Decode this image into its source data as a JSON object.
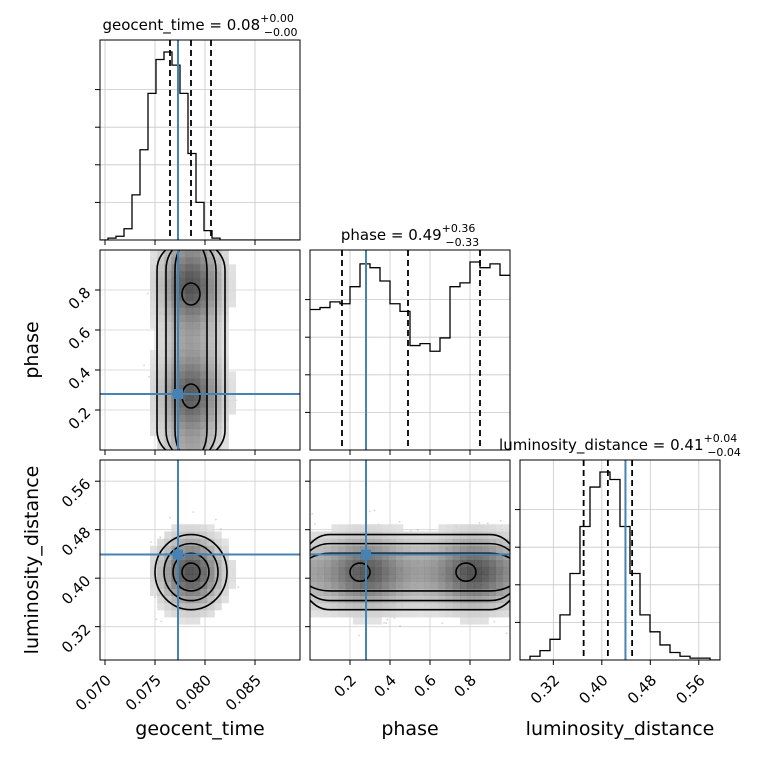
{
  "chart_data": {
    "type": "corner",
    "parameters": [
      {
        "name": "geocent_time",
        "label": "geocent_time",
        "range": [
          0.0695,
          0.0895
        ],
        "ticks": [
          0.07,
          0.075,
          0.08,
          0.085
        ],
        "tick_labels": [
          "0.070",
          "0.075",
          "0.080",
          "0.085"
        ],
        "median": 0.0786,
        "q_low": 0.0765,
        "q_high": 0.0806,
        "truth": 0.0773,
        "title_main": "geocent_time = 0.08",
        "title_plus": "+0.00",
        "title_minus": "−0.00",
        "hist": {
          "x_start": 0.0695,
          "bin_width": 0.0008,
          "counts": [
            0.0,
            0.01,
            0.02,
            0.06,
            0.24,
            0.48,
            0.78,
            0.96,
            1.0,
            0.93,
            0.78,
            0.46,
            0.2,
            0.05,
            0.01,
            0.0,
            0.0,
            0.0,
            0.0,
            0.0,
            0.0,
            0.0,
            0.0,
            0.0,
            0.0
          ]
        }
      },
      {
        "name": "phase",
        "label": "phase",
        "range": [
          0.0,
          1.0
        ],
        "ticks": [
          0.2,
          0.4,
          0.6,
          0.8
        ],
        "tick_labels": [
          "0.2",
          "0.4",
          "0.6",
          "0.8"
        ],
        "median": 0.49,
        "q_low": 0.16,
        "q_high": 0.85,
        "truth": 0.28,
        "title_main": "phase = 0.49",
        "title_plus": "+0.36",
        "title_minus": "−0.33",
        "hist": {
          "x_start": 0.0,
          "bin_width": 0.05,
          "counts": [
            0.74,
            0.75,
            0.78,
            0.77,
            0.86,
            0.98,
            0.96,
            0.89,
            0.77,
            0.73,
            0.55,
            0.56,
            0.52,
            0.59,
            0.86,
            0.88,
            0.99,
            0.96,
            0.98,
            0.92
          ]
        }
      },
      {
        "name": "luminosity_distance",
        "label": "luminosity_distance",
        "range": [
          0.265,
          0.595
        ],
        "ticks": [
          0.32,
          0.4,
          0.48,
          0.56
        ],
        "tick_labels": [
          "0.32",
          "0.40",
          "0.48",
          "0.56"
        ],
        "median": 0.41,
        "q_low": 0.37,
        "q_high": 0.45,
        "truth": 0.439,
        "title_main": "luminosity_distance = 0.41",
        "title_plus": "+0.04",
        "title_minus": "−0.04",
        "hist": {
          "x_start": 0.265,
          "bin_width": 0.0165,
          "counts": [
            0.0,
            0.02,
            0.05,
            0.11,
            0.24,
            0.46,
            0.71,
            0.92,
            1.0,
            0.96,
            0.71,
            0.46,
            0.24,
            0.15,
            0.08,
            0.04,
            0.02,
            0.01,
            0.01,
            0.0
          ]
        }
      }
    ],
    "truth_color": "#4682b4",
    "grid": true
  }
}
